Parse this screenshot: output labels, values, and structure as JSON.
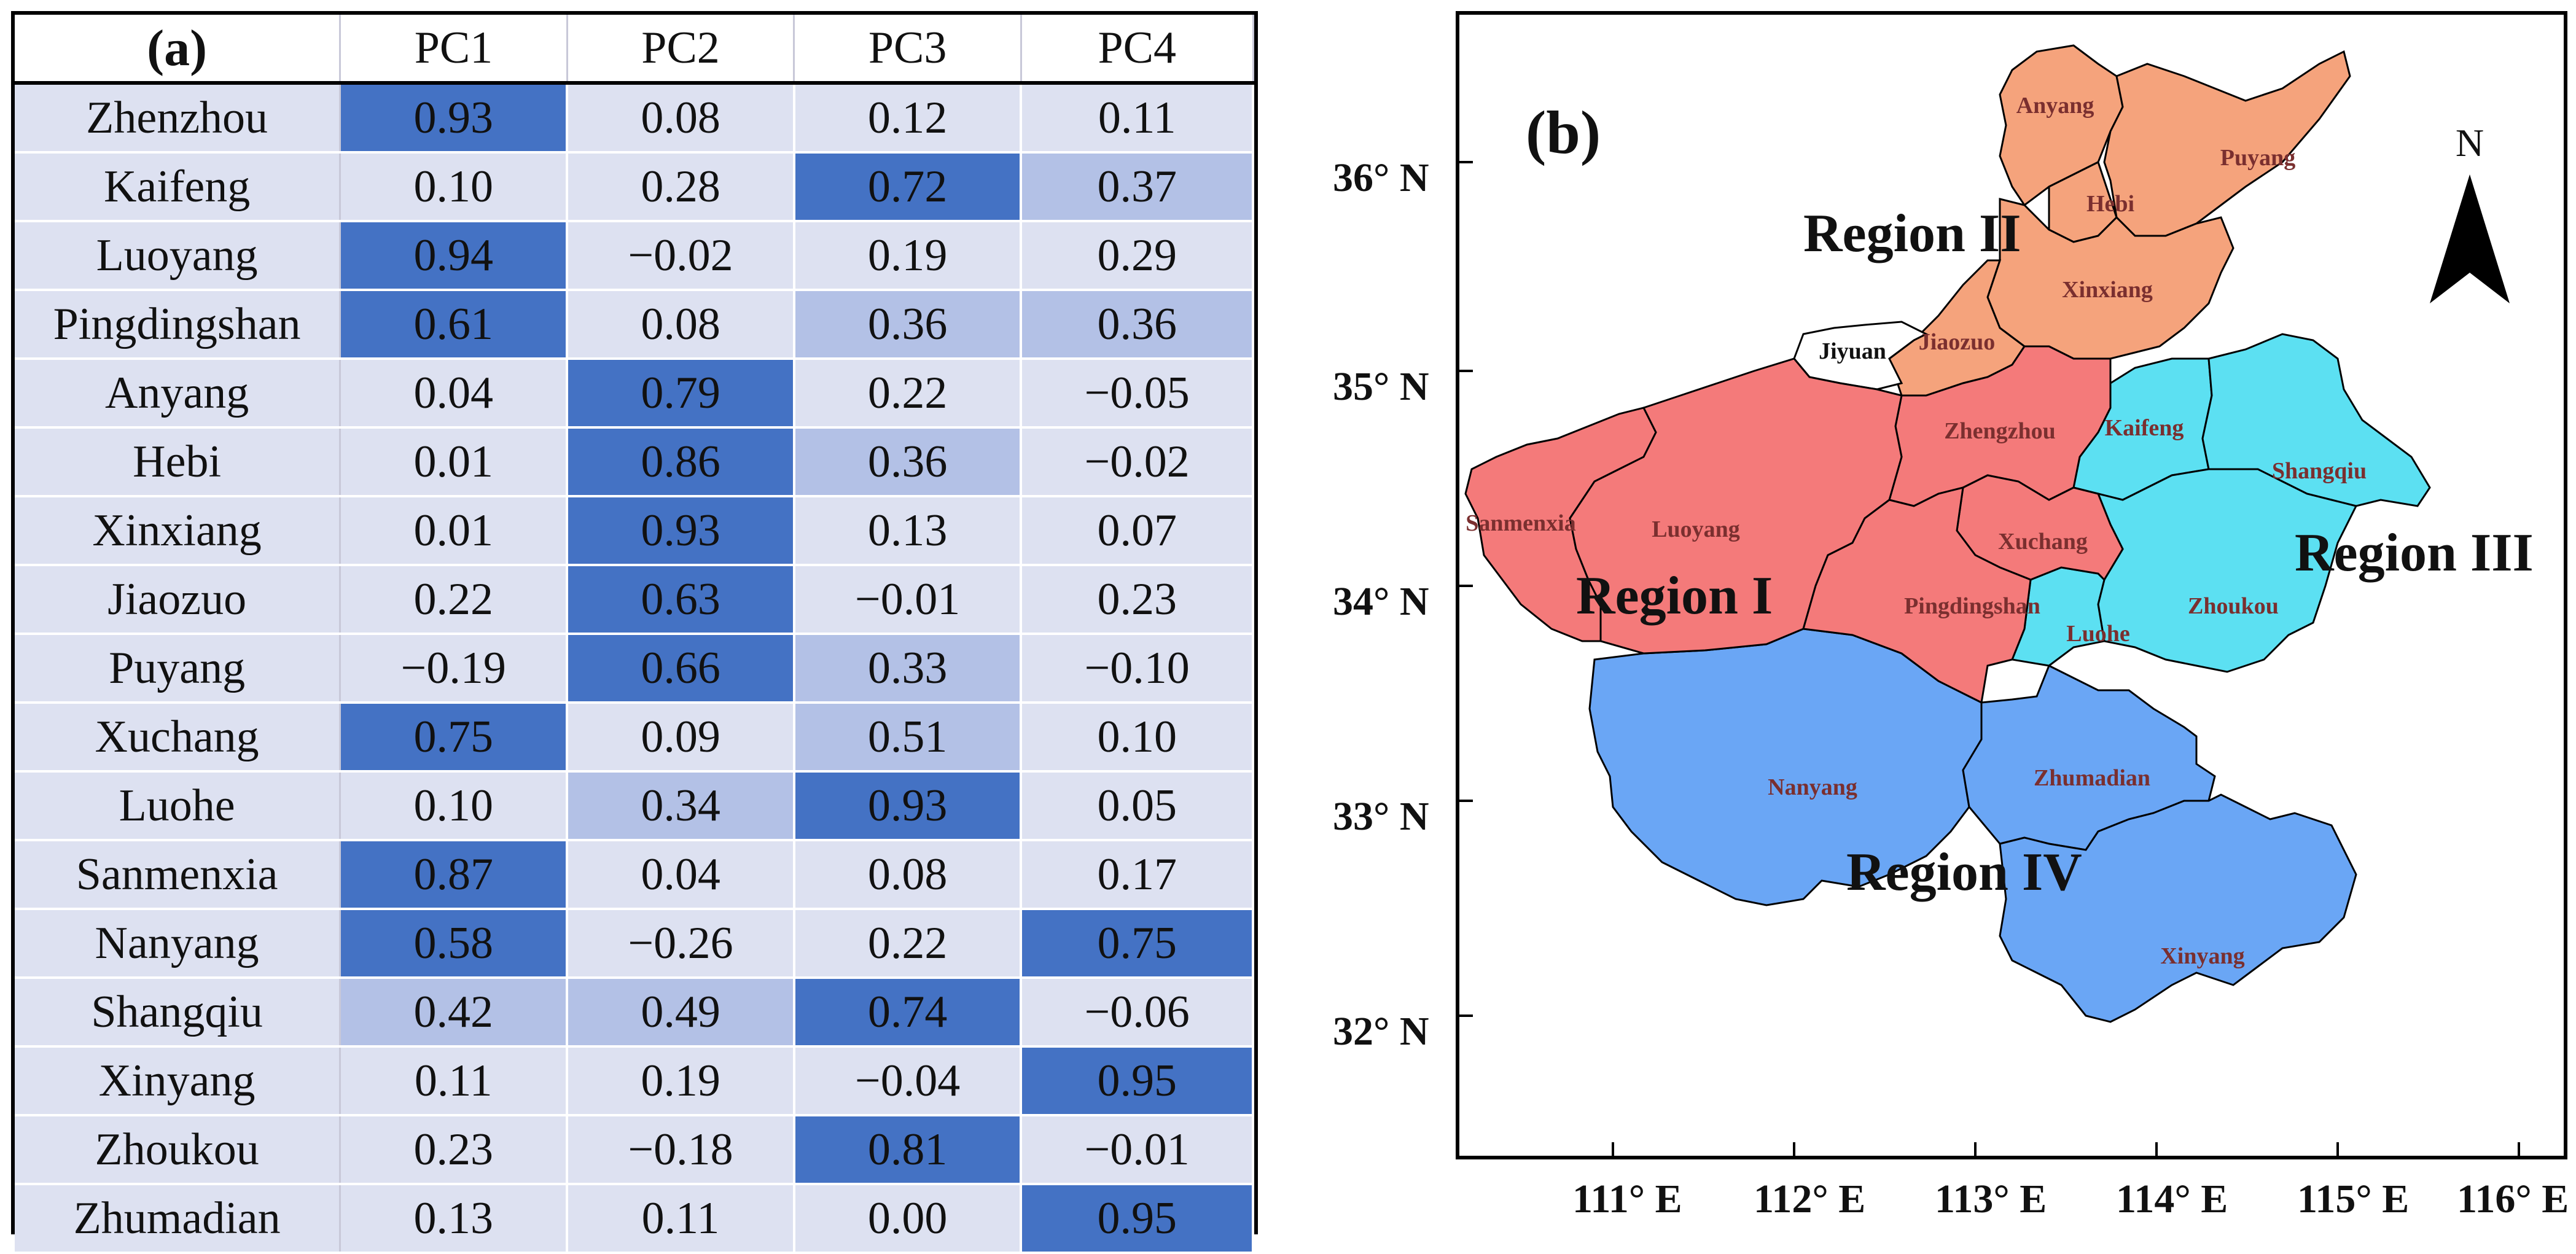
{
  "panel_a": {
    "label": "(a)",
    "columns": [
      "PC1",
      "PC2",
      "PC3",
      "PC4"
    ],
    "rows": [
      {
        "city": "Zhenzhou",
        "values": [
          "0.93",
          "0.08",
          "0.12",
          "0.11"
        ]
      },
      {
        "city": "Kaifeng",
        "values": [
          "0.10",
          "0.28",
          "0.72",
          "0.37"
        ]
      },
      {
        "city": "Luoyang",
        "values": [
          "0.94",
          "−0.02",
          "0.19",
          "0.29"
        ]
      },
      {
        "city": "Pingdingshan",
        "values": [
          "0.61",
          "0.08",
          "0.36",
          "0.36"
        ]
      },
      {
        "city": "Anyang",
        "values": [
          "0.04",
          "0.79",
          "0.22",
          "−0.05"
        ]
      },
      {
        "city": "Hebi",
        "values": [
          "0.01",
          "0.86",
          "0.36",
          "−0.02"
        ]
      },
      {
        "city": "Xinxiang",
        "values": [
          "0.01",
          "0.93",
          "0.13",
          "0.07"
        ]
      },
      {
        "city": "Jiaozuo",
        "values": [
          "0.22",
          "0.63",
          "−0.01",
          "0.23"
        ]
      },
      {
        "city": "Puyang",
        "values": [
          "−0.19",
          "0.66",
          "0.33",
          "−0.10"
        ]
      },
      {
        "city": "Xuchang",
        "values": [
          "0.75",
          "0.09",
          "0.51",
          "0.10"
        ]
      },
      {
        "city": "Luohe",
        "values": [
          "0.10",
          "0.34",
          "0.93",
          "0.05"
        ]
      },
      {
        "city": "Sanmenxia",
        "values": [
          "0.87",
          "0.04",
          "0.08",
          "0.17"
        ]
      },
      {
        "city": "Nanyang",
        "values": [
          "0.58",
          "−0.26",
          "0.22",
          "0.75"
        ]
      },
      {
        "city": "Shangqiu",
        "values": [
          "0.42",
          "0.49",
          "0.74",
          "−0.06"
        ]
      },
      {
        "city": "Xinyang",
        "values": [
          "0.11",
          "0.19",
          "−0.04",
          "0.95"
        ]
      },
      {
        "city": "Zhoukou",
        "values": [
          "0.23",
          "−0.18",
          "0.81",
          "−0.01"
        ]
      },
      {
        "city": "Zhumadian",
        "values": [
          "0.13",
          "0.11",
          "0.00",
          "0.95"
        ]
      }
    ],
    "colors": {
      "low": "#dde1f1",
      "medium": "#b3c1e6",
      "high": "#4472c4"
    }
  },
  "panel_b": {
    "label": "(b)",
    "north_label": "N",
    "lat_labels": [
      "36° N",
      "35° N",
      "34° N",
      "33° N",
      "32° N"
    ],
    "lon_labels": [
      "111° E",
      "112° E",
      "113° E",
      "114° E",
      "115° E",
      "116° E"
    ],
    "regions": [
      {
        "name": "Region I",
        "color": "#f47a7a"
      },
      {
        "name": "Region II",
        "color": "#f5a37c"
      },
      {
        "name": "Region III",
        "color": "#5ce0f2"
      },
      {
        "name": "Region IV",
        "color": "#6aa6f5"
      }
    ],
    "city_labels": {
      "anyang": "Anyang",
      "puyang": "Puyang",
      "hebi": "Hebi",
      "xinxiang": "Xinxiang",
      "jiaozuo": "Jiaozuo",
      "jiyuan": "Jiyuan",
      "zhengzhou": "Zhengzhou",
      "kaifeng": "Kaifeng",
      "shangqiu": "Shangqiu",
      "sanmenxia": "Sanmenxia",
      "luoyang": "Luoyang",
      "xuchang": "Xuchang",
      "pingdingshan": "Pingdingshan",
      "luohe": "Luohe",
      "zhoukou": "Zhoukou",
      "nanyang": "Nanyang",
      "zhumadian": "Zhumadian",
      "xinyang": "Xinyang"
    }
  }
}
